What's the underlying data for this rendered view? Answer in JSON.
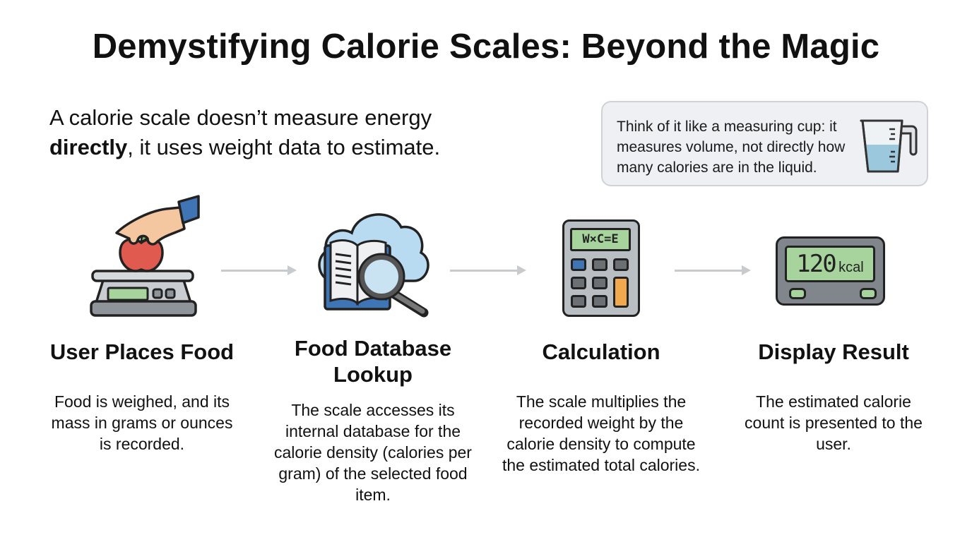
{
  "title": "Demystifying Calorie Scales: Beyond the Magic",
  "subtitle": {
    "part1": "A calorie scale doesn’t measure energy",
    "bold": "directly",
    "part2": ", it uses weight data to estimate."
  },
  "callout": {
    "text": "Think of it like a measuring cup: it measures volume, not directly how many calories are in the liquid.",
    "icon": "measuring-cup-icon"
  },
  "steps": [
    {
      "title": "User Places Food",
      "description": "Food is weighed, and its mass in grams or ounces is recorded.",
      "icon": "scale-with-apple-icon"
    },
    {
      "title": "Food Database Lookup",
      "description": "The scale accesses its internal database for the calorie density (calories per gram) of the selected food item.",
      "icon": "cloud-book-magnifier-icon"
    },
    {
      "title": "Calculation",
      "description": "The scale multiplies the recorded weight by the calorie density to compute the estimated total calories.",
      "icon": "calculator-icon",
      "screen_text": "W×C=E"
    },
    {
      "title": "Display Result",
      "description": "The estimated calorie count is presented to the user.",
      "icon": "display-icon",
      "value": "120",
      "unit": "kcal"
    }
  ],
  "colors": {
    "arrow": "#c8cbce",
    "lcd": "#a6d49c",
    "apple": "#e05a4f",
    "accent_blue": "#3f74b5",
    "orange": "#f2a94e"
  }
}
